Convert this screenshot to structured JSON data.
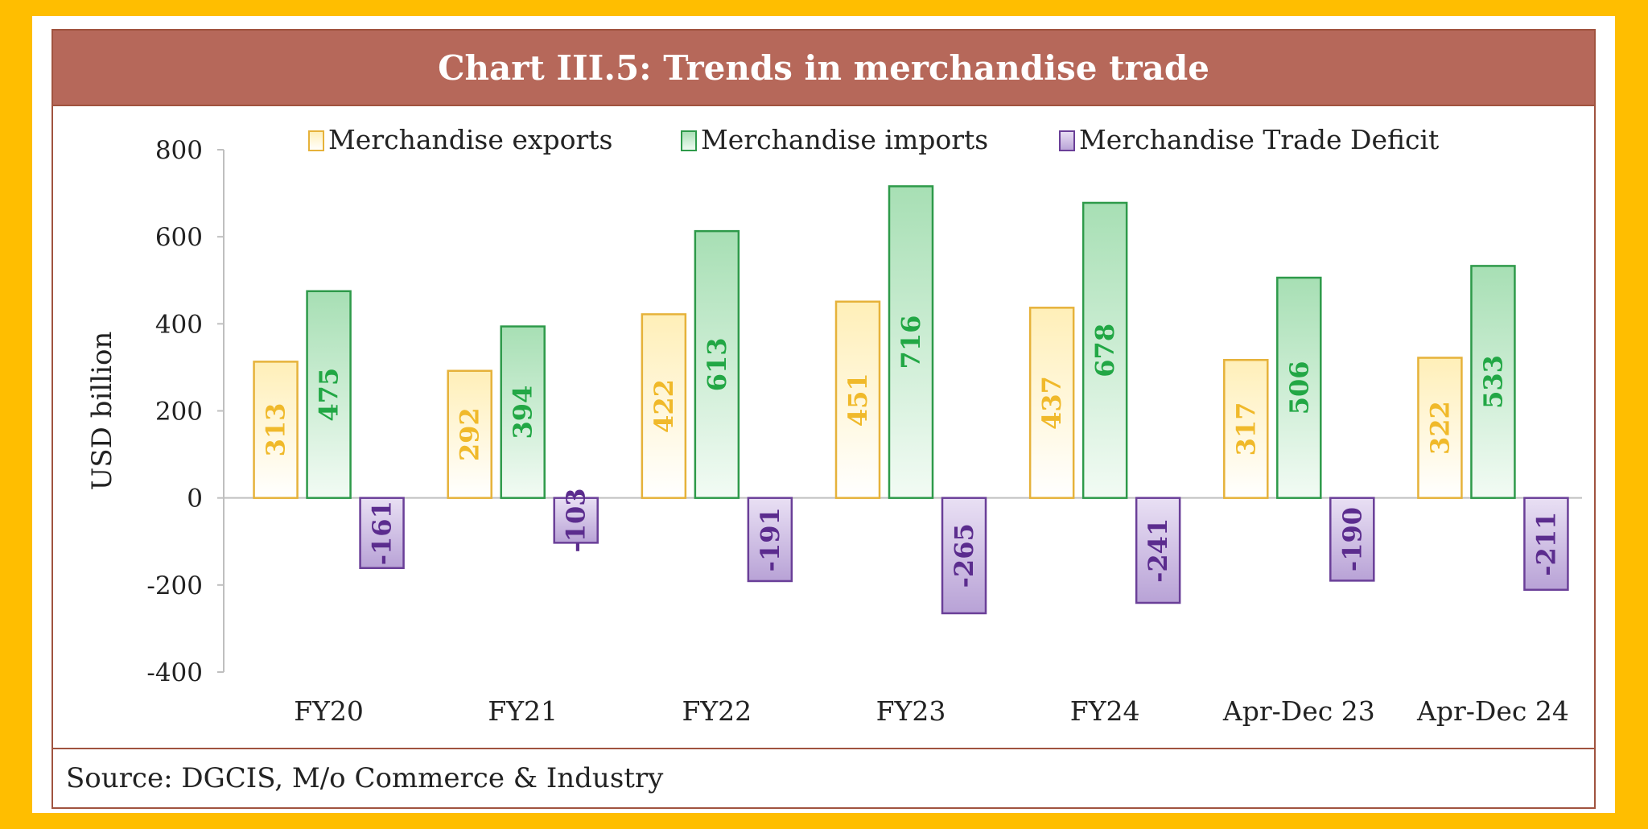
{
  "chart_data": {
    "type": "bar",
    "title": "Chart III.5: Trends in merchandise trade",
    "ylabel": "USD billion",
    "ylim": [
      -400,
      800
    ],
    "yticks": [
      800,
      600,
      400,
      200,
      0,
      -200,
      -400
    ],
    "ytick_labels": [
      "800",
      "600",
      "400",
      "200",
      "0",
      "-200",
      "-400"
    ],
    "categories": [
      "FY20",
      "FY21",
      "FY22",
      "FY23",
      "FY24",
      "Apr-Dec 23",
      "Apr-Dec 24"
    ],
    "series": [
      {
        "name": "Merchandise exports",
        "values": [
          313,
          292,
          422,
          451,
          437,
          317,
          322
        ],
        "color": "#F7D264",
        "label_color": "#F0B92A",
        "fill_top": "#FFEFB8",
        "fill_bottom": "#FFFFFF",
        "border": "#E6B23A"
      },
      {
        "name": "Merchandise imports",
        "values": [
          475,
          394,
          613,
          716,
          678,
          506,
          533
        ],
        "color": "#4FBF6B",
        "label_color": "#22A745",
        "fill_top": "#A7DFB4",
        "fill_bottom": "#F2FBF4",
        "border": "#2E9A4A"
      },
      {
        "name": "Merchandise Trade Deficit",
        "values": [
          -161,
          -103,
          -191,
          -265,
          -241,
          -190,
          -211
        ],
        "color": "#9C7FC3",
        "label_color": "#5B2C8E",
        "fill_top": "#E9E0F4",
        "fill_bottom": "#B8A2D6",
        "border": "#6A3F98"
      }
    ],
    "legend_position": "top",
    "grid": false
  },
  "source": "Source: DGCIS, M/o Commerce & Industry"
}
